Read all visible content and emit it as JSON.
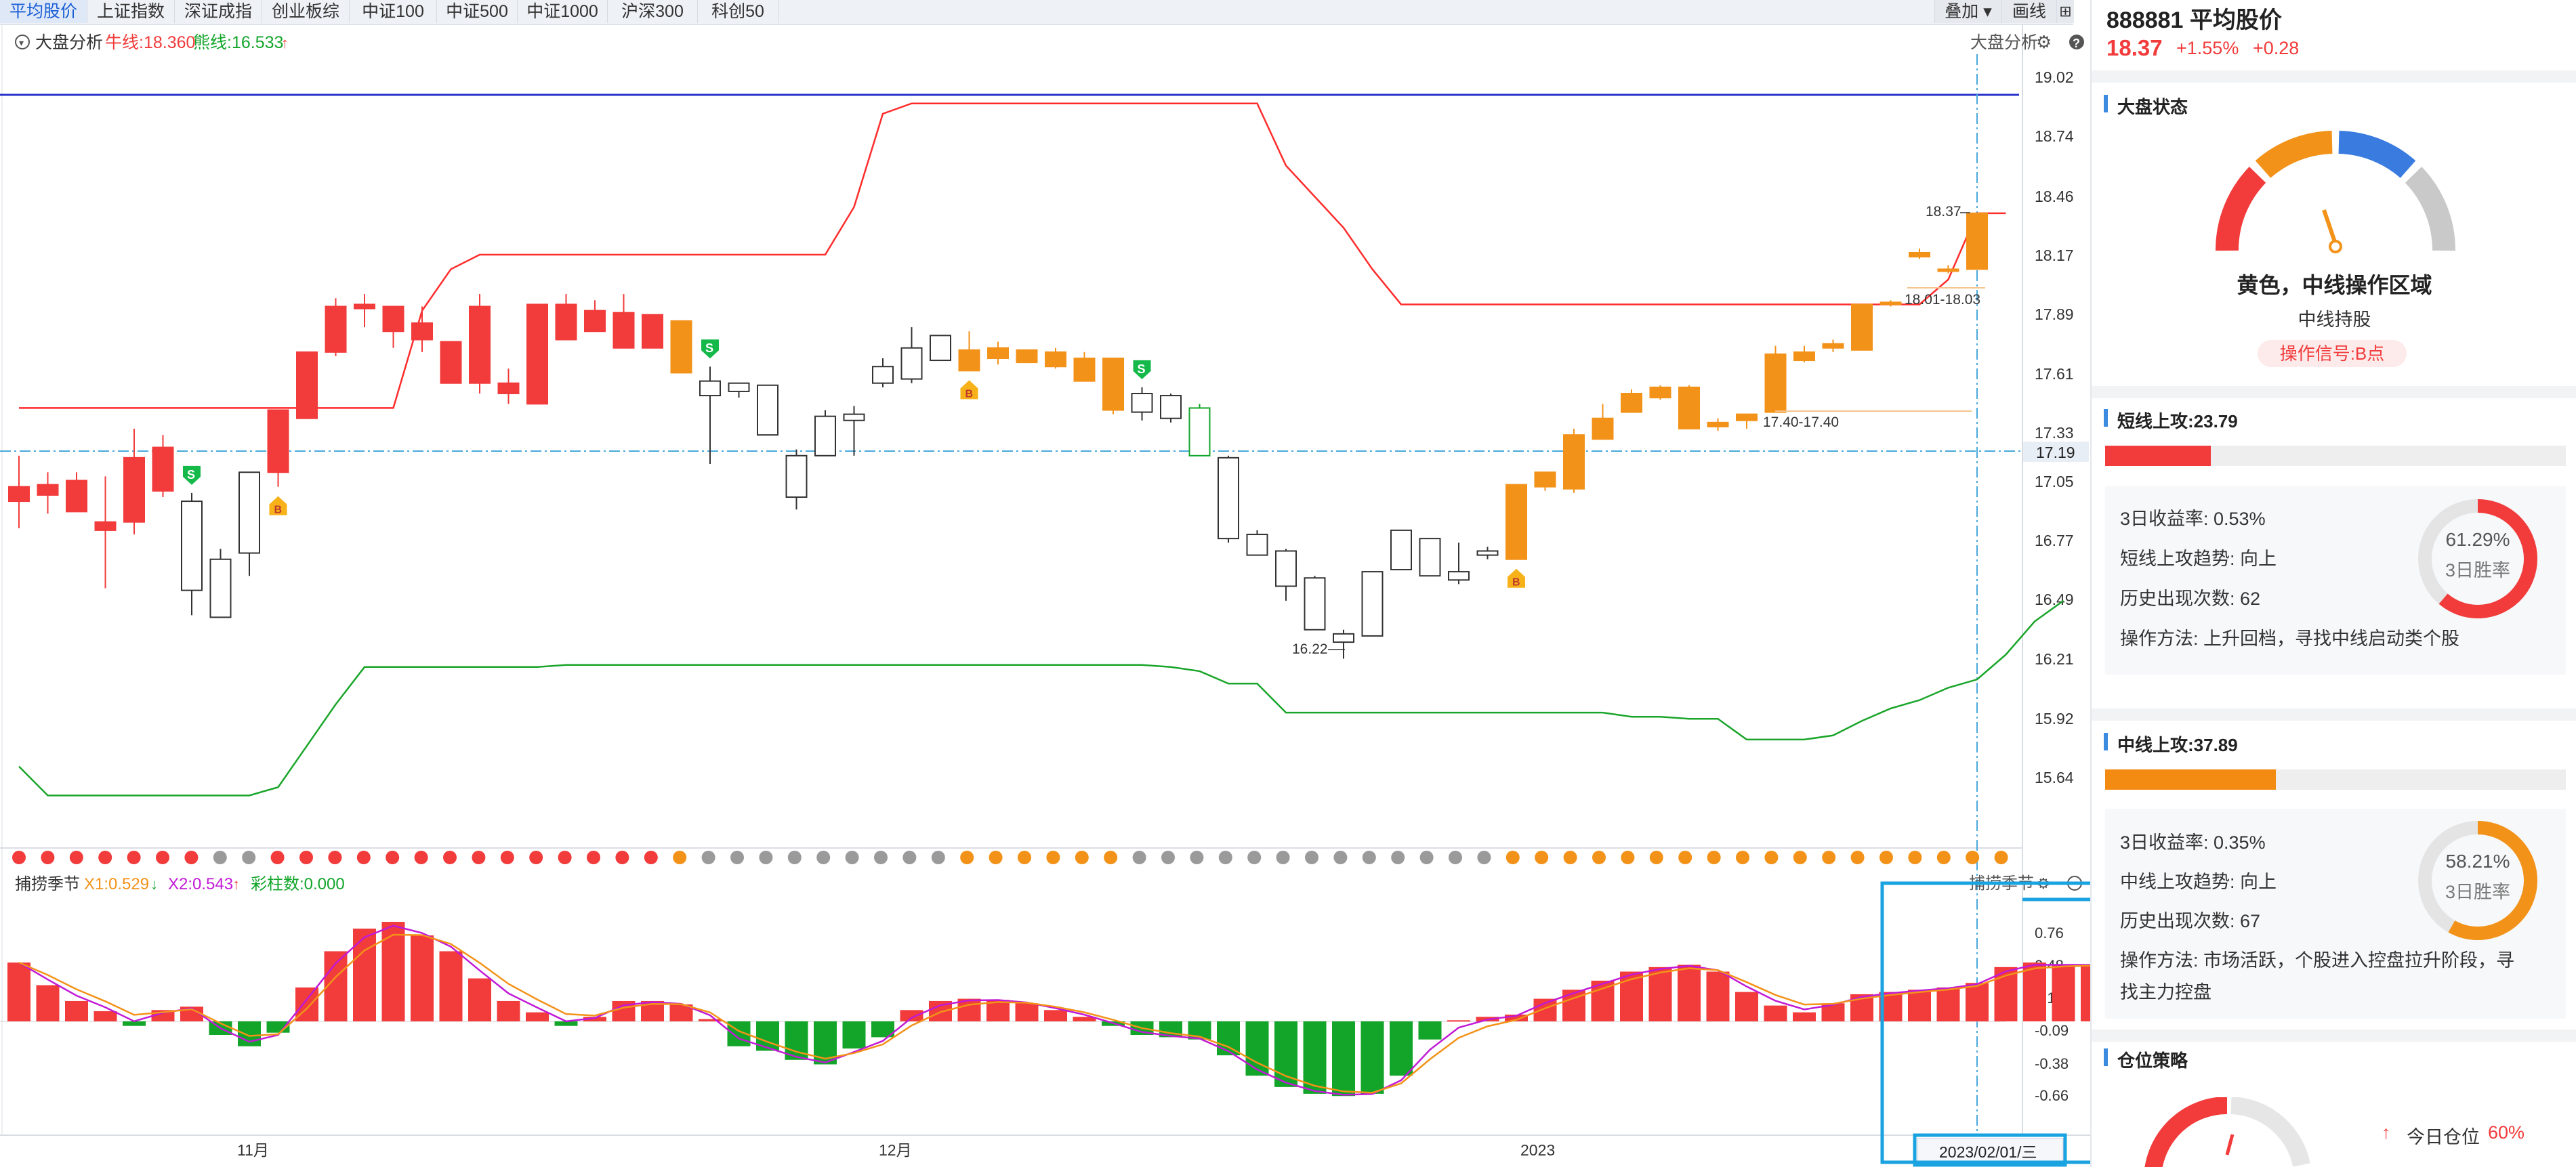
{
  "tabs": [
    "平均股价",
    "上证指数",
    "深证成指",
    "创业板综",
    "中证100",
    "中证500",
    "中证1000",
    "沪深300",
    "科创50"
  ],
  "toolbar": {
    "overlay_label": "叠加",
    "draw_label": "画线"
  },
  "main_legend": {
    "title": "大盘分析",
    "bull_label": "牛线:18.360",
    "bear_label": "熊线:16.533",
    "right_title": "大盘分析"
  },
  "price_axis": [
    "19.02",
    "18.74",
    "18.46",
    "18.17",
    "17.89",
    "17.61",
    "17.33",
    "17.05",
    "16.77",
    "16.49",
    "16.21",
    "15.92",
    "15.64"
  ],
  "cursor_price": "17.19",
  "annotations": {
    "high": "18.37",
    "range_top": "18.01-18.03",
    "range_mid": "17.40-17.40",
    "low": "16.22"
  },
  "sub_legend": {
    "title": "捕捞季节",
    "x1": "X1:0.529",
    "x2": "X2:0.543",
    "bar_count": "彩柱数:0.000",
    "right_title": "捕捞季节"
  },
  "sub_axis": [
    "0.76",
    "0.48",
    "0.19",
    "-0.09",
    "-0.38",
    "-0.66"
  ],
  "x_axis": [
    "11月",
    "12月",
    "2023"
  ],
  "cursor_date": "2023/02/01/三",
  "markers": {
    "buy": "B",
    "sell": "S"
  },
  "chart_data": {
    "type": "candlestick",
    "ylim": [
      15.5,
      19.1
    ],
    "candles": [
      {
        "o": 17.05,
        "h": 17.2,
        "l": 16.85,
        "c": 16.98,
        "col": "red"
      },
      {
        "o": 17.01,
        "h": 17.12,
        "l": 16.92,
        "c": 17.06,
        "col": "red"
      },
      {
        "o": 16.93,
        "h": 17.12,
        "l": 16.93,
        "c": 17.08,
        "col": "red"
      },
      {
        "o": 16.84,
        "h": 17.1,
        "l": 16.56,
        "c": 16.88,
        "col": "red"
      },
      {
        "o": 16.88,
        "h": 17.33,
        "l": 16.82,
        "c": 17.19,
        "col": "red"
      },
      {
        "o": 17.03,
        "h": 17.3,
        "l": 17.0,
        "c": 17.24,
        "col": "red"
      },
      {
        "o": 16.55,
        "h": 17.02,
        "l": 16.43,
        "c": 16.98,
        "col": "hollow"
      },
      {
        "o": 16.42,
        "h": 16.75,
        "l": 16.42,
        "c": 16.7,
        "col": "hollow"
      },
      {
        "o": 16.73,
        "h": 17.12,
        "l": 16.62,
        "c": 17.12,
        "col": "hollow"
      },
      {
        "o": 17.12,
        "h": 17.42,
        "l": 17.05,
        "c": 17.42,
        "col": "red"
      },
      {
        "o": 17.38,
        "h": 17.7,
        "l": 17.38,
        "c": 17.7,
        "col": "red"
      },
      {
        "o": 17.7,
        "h": 17.96,
        "l": 17.68,
        "c": 17.92,
        "col": "red"
      },
      {
        "o": 17.91,
        "h": 17.98,
        "l": 17.82,
        "c": 17.93,
        "col": "red"
      },
      {
        "o": 17.8,
        "h": 17.92,
        "l": 17.72,
        "c": 17.92,
        "col": "red"
      },
      {
        "o": 17.76,
        "h": 17.92,
        "l": 17.7,
        "c": 17.84,
        "col": "red"
      },
      {
        "o": 17.55,
        "h": 17.75,
        "l": 17.55,
        "c": 17.75,
        "col": "red"
      },
      {
        "o": 17.55,
        "h": 17.98,
        "l": 17.5,
        "c": 17.92,
        "col": "red"
      },
      {
        "o": 17.5,
        "h": 17.62,
        "l": 17.45,
        "c": 17.55,
        "col": "red"
      },
      {
        "o": 17.45,
        "h": 17.93,
        "l": 17.45,
        "c": 17.93,
        "col": "red"
      },
      {
        "o": 17.76,
        "h": 17.98,
        "l": 17.76,
        "c": 17.93,
        "col": "red"
      },
      {
        "o": 17.8,
        "h": 17.95,
        "l": 17.8,
        "c": 17.9,
        "col": "red"
      },
      {
        "o": 17.72,
        "h": 17.98,
        "l": 17.72,
        "c": 17.89,
        "col": "red"
      },
      {
        "o": 17.72,
        "h": 17.88,
        "l": 17.72,
        "c": 17.88,
        "col": "red"
      },
      {
        "o": 17.85,
        "h": 17.85,
        "l": 17.6,
        "c": 17.6,
        "col": "orange"
      },
      {
        "o": 17.56,
        "h": 17.63,
        "l": 17.16,
        "c": 17.49,
        "col": "hollow"
      },
      {
        "o": 17.51,
        "h": 17.55,
        "l": 17.48,
        "c": 17.55,
        "col": "hollow"
      },
      {
        "o": 17.3,
        "h": 17.54,
        "l": 17.3,
        "c": 17.54,
        "col": "hollow"
      },
      {
        "o": 17.0,
        "h": 17.23,
        "l": 16.94,
        "c": 17.2,
        "col": "hollow"
      },
      {
        "o": 17.2,
        "h": 17.42,
        "l": 17.2,
        "c": 17.39,
        "col": "hollow"
      },
      {
        "o": 17.37,
        "h": 17.44,
        "l": 17.2,
        "c": 17.4,
        "col": "hollow"
      },
      {
        "o": 17.55,
        "h": 17.67,
        "l": 17.53,
        "c": 17.63,
        "col": "hollow"
      },
      {
        "o": 17.57,
        "h": 17.82,
        "l": 17.55,
        "c": 17.72,
        "col": "hollow"
      },
      {
        "o": 17.66,
        "h": 17.78,
        "l": 17.66,
        "c": 17.78,
        "col": "hollow"
      },
      {
        "o": 17.71,
        "h": 17.8,
        "l": 17.61,
        "c": 17.61,
        "col": "orange"
      },
      {
        "o": 17.72,
        "h": 17.75,
        "l": 17.64,
        "c": 17.67,
        "col": "orange"
      },
      {
        "o": 17.71,
        "h": 17.71,
        "l": 17.65,
        "c": 17.65,
        "col": "orange"
      },
      {
        "o": 17.7,
        "h": 17.72,
        "l": 17.62,
        "c": 17.63,
        "col": "orange"
      },
      {
        "o": 17.67,
        "h": 17.7,
        "l": 17.56,
        "c": 17.56,
        "col": "orange"
      },
      {
        "o": 17.67,
        "h": 17.67,
        "l": 17.4,
        "c": 17.42,
        "col": "orange"
      },
      {
        "o": 17.41,
        "h": 17.53,
        "l": 17.37,
        "c": 17.5,
        "col": "hollow"
      },
      {
        "o": 17.38,
        "h": 17.5,
        "l": 17.36,
        "c": 17.49,
        "col": "hollow"
      },
      {
        "o": 17.2,
        "h": 17.45,
        "l": 17.2,
        "c": 17.43,
        "col": "hollow",
        "green": true
      },
      {
        "o": 16.8,
        "h": 17.2,
        "l": 16.78,
        "c": 17.19,
        "col": "hollow"
      },
      {
        "o": 16.72,
        "h": 16.84,
        "l": 16.72,
        "c": 16.82,
        "col": "hollow"
      },
      {
        "o": 16.57,
        "h": 16.75,
        "l": 16.5,
        "c": 16.74,
        "col": "hollow"
      },
      {
        "o": 16.36,
        "h": 16.62,
        "l": 16.36,
        "c": 16.61,
        "col": "hollow"
      },
      {
        "o": 16.3,
        "h": 16.36,
        "l": 16.22,
        "c": 16.34,
        "col": "hollow"
      },
      {
        "o": 16.33,
        "h": 16.64,
        "l": 16.33,
        "c": 16.64,
        "col": "hollow"
      },
      {
        "o": 16.65,
        "h": 16.84,
        "l": 16.65,
        "c": 16.84,
        "col": "hollow"
      },
      {
        "o": 16.62,
        "h": 16.8,
        "l": 16.62,
        "c": 16.8,
        "col": "hollow"
      },
      {
        "o": 16.6,
        "h": 16.78,
        "l": 16.58,
        "c": 16.64,
        "col": "hollow"
      },
      {
        "o": 16.72,
        "h": 16.76,
        "l": 16.7,
        "c": 16.74,
        "col": "hollow"
      },
      {
        "o": 16.7,
        "h": 17.06,
        "l": 16.7,
        "c": 17.06,
        "col": "orange"
      },
      {
        "o": 17.05,
        "h": 17.12,
        "l": 17.03,
        "c": 17.12,
        "col": "orange"
      },
      {
        "o": 17.04,
        "h": 17.33,
        "l": 17.02,
        "c": 17.3,
        "col": "orange"
      },
      {
        "o": 17.28,
        "h": 17.45,
        "l": 17.28,
        "c": 17.38,
        "col": "orange"
      },
      {
        "o": 17.41,
        "h": 17.52,
        "l": 17.41,
        "c": 17.5,
        "col": "orange"
      },
      {
        "o": 17.48,
        "h": 17.54,
        "l": 17.47,
        "c": 17.53,
        "col": "orange"
      },
      {
        "o": 17.33,
        "h": 17.54,
        "l": 17.33,
        "c": 17.53,
        "col": "orange"
      },
      {
        "o": 17.34,
        "h": 17.38,
        "l": 17.32,
        "c": 17.36,
        "col": "orange"
      },
      {
        "o": 17.37,
        "h": 17.4,
        "l": 17.33,
        "c": 17.4,
        "col": "orange"
      },
      {
        "o": 17.41,
        "h": 17.73,
        "l": 17.41,
        "c": 17.69,
        "col": "orange"
      },
      {
        "o": 17.66,
        "h": 17.73,
        "l": 17.65,
        "c": 17.7,
        "col": "orange"
      },
      {
        "o": 17.72,
        "h": 17.76,
        "l": 17.7,
        "c": 17.74,
        "col": "orange"
      },
      {
        "o": 17.71,
        "h": 17.93,
        "l": 17.71,
        "c": 17.93,
        "col": "orange"
      },
      {
        "o": 17.93,
        "h": 17.95,
        "l": 17.92,
        "c": 17.94,
        "col": "orange"
      },
      {
        "o": 18.16,
        "h": 18.2,
        "l": 18.15,
        "c": 18.18,
        "col": "orange"
      },
      {
        "o": 18.09,
        "h": 18.12,
        "l": 18.08,
        "c": 18.1,
        "col": "orange"
      },
      {
        "o": 18.1,
        "h": 18.37,
        "l": 18.1,
        "c": 18.37,
        "col": "orange"
      }
    ],
    "bull_line": [
      17.43,
      17.43,
      17.43,
      17.43,
      17.43,
      17.43,
      17.43,
      17.43,
      17.43,
      17.43,
      17.43,
      17.43,
      17.43,
      17.43,
      17.9,
      18.1,
      18.17,
      18.17,
      18.17,
      18.17,
      18.17,
      18.17,
      18.17,
      18.17,
      18.17,
      18.17,
      18.17,
      18.17,
      18.17,
      18.4,
      18.85,
      18.9,
      18.9,
      18.9,
      18.9,
      18.9,
      18.9,
      18.9,
      18.9,
      18.9,
      18.9,
      18.9,
      18.9,
      18.9,
      18.6,
      18.45,
      18.3,
      18.1,
      17.93,
      17.93,
      17.93,
      17.93,
      17.93,
      17.93,
      17.93,
      17.93,
      17.93,
      17.93,
      17.93,
      17.93,
      17.93,
      17.93,
      17.93,
      17.93,
      17.93,
      17.93,
      17.93,
      18.05,
      18.37,
      18.37
    ],
    "bear_line": [
      15.7,
      15.56,
      15.56,
      15.56,
      15.56,
      15.56,
      15.56,
      15.56,
      15.56,
      15.6,
      15.8,
      16.0,
      16.18,
      16.18,
      16.18,
      16.18,
      16.18,
      16.18,
      16.18,
      16.19,
      16.19,
      16.19,
      16.19,
      16.19,
      16.19,
      16.19,
      16.19,
      16.19,
      16.19,
      16.19,
      16.19,
      16.19,
      16.19,
      16.19,
      16.19,
      16.19,
      16.19,
      16.19,
      16.19,
      16.19,
      16.18,
      16.16,
      16.1,
      16.1,
      15.96,
      15.96,
      15.96,
      15.96,
      15.96,
      15.96,
      15.96,
      15.96,
      15.96,
      15.96,
      15.96,
      15.96,
      15.94,
      15.94,
      15.93,
      15.93,
      15.83,
      15.83,
      15.83,
      15.85,
      15.92,
      15.98,
      16.02,
      16.08,
      16.12,
      16.24,
      16.4,
      16.5
    ],
    "dots": [
      "red",
      "red",
      "red",
      "red",
      "red",
      "red",
      "red",
      "grey",
      "grey",
      "red",
      "red",
      "red",
      "red",
      "red",
      "red",
      "red",
      "red",
      "red",
      "red",
      "red",
      "red",
      "red",
      "red",
      "orange",
      "grey",
      "grey",
      "grey",
      "grey",
      "grey",
      "grey",
      "grey",
      "grey",
      "grey",
      "orange",
      "orange",
      "orange",
      "orange",
      "orange",
      "orange",
      "grey",
      "grey",
      "grey",
      "grey",
      "grey",
      "grey",
      "grey",
      "grey",
      "grey",
      "grey",
      "grey",
      "grey",
      "grey",
      "orange",
      "orange",
      "orange",
      "orange",
      "orange",
      "orange",
      "orange",
      "orange",
      "orange",
      "orange",
      "orange",
      "orange",
      "orange",
      "orange",
      "orange",
      "orange",
      "orange",
      "orange"
    ],
    "signals": [
      {
        "i": 6,
        "type": "sell"
      },
      {
        "i": 9,
        "type": "buy"
      },
      {
        "i": 24,
        "type": "sell"
      },
      {
        "i": 33,
        "type": "buy"
      },
      {
        "i": 39,
        "type": "sell"
      },
      {
        "i": 52,
        "type": "buy"
      }
    ],
    "osc_ylim": [
      -0.8,
      0.95
    ],
    "osc": [
      0.52,
      0.32,
      0.18,
      0.09,
      -0.04,
      0.1,
      0.13,
      -0.12,
      -0.22,
      -0.1,
      0.3,
      0.62,
      0.82,
      0.88,
      0.76,
      0.62,
      0.38,
      0.18,
      0.08,
      -0.04,
      0.04,
      0.18,
      0.18,
      0.15,
      0.02,
      -0.22,
      -0.26,
      -0.34,
      -0.38,
      -0.24,
      -0.14,
      0.1,
      0.18,
      0.2,
      0.19,
      0.16,
      0.1,
      0.04,
      -0.04,
      -0.12,
      -0.14,
      -0.16,
      -0.3,
      -0.48,
      -0.58,
      -0.64,
      -0.66,
      -0.64,
      -0.48,
      -0.16,
      0.01,
      0.04,
      0.06,
      0.2,
      0.28,
      0.36,
      0.44,
      0.48,
      0.5,
      0.44,
      0.26,
      0.14,
      0.08,
      0.16,
      0.24,
      0.26,
      0.28,
      0.3,
      0.34,
      0.48,
      0.52,
      0.5,
      0.5
    ]
  },
  "right_panel": {
    "code_name": "888881 平均股价",
    "price": "18.37",
    "pct": "+1.55%",
    "chg": "+0.28",
    "market_state_title": "大盘状态",
    "gauge_status": "黄色，中线操作区域",
    "gauge_sub": "中线持股",
    "signal_badge": "操作信号:B点",
    "short": {
      "title": "短线上攻:23.79",
      "level": 0.23,
      "r1": "3日收益率:  0.53%",
      "r2": "短线上攻趋势:  向上",
      "r3": "历史出现次数:  62",
      "r4": "操作方法:  上升回档，寻找中线启动类个股",
      "ring_pct": "61.29%",
      "ring_label": "3日胜率",
      "ring_value": 0.6129
    },
    "mid": {
      "title": "中线上攻:37.89",
      "level": 0.37,
      "r1": "3日收益率:  0.35%",
      "r2": "中线上攻趋势:  向上",
      "r3": "历史出现次数:  67",
      "r4a": "操作方法:  市场活跃，个股进入控盘拉升阶段，寻",
      "r4b": "找主力控盘",
      "ring_pct": "58.21%",
      "ring_label": "3日胜率",
      "ring_value": 0.5821
    },
    "position_title": "仓位策略",
    "today_label": "今日仓位",
    "today_value": "60%"
  },
  "colors": {
    "red": "#f23b3b",
    "orange": "#f39219",
    "green": "#13a52a",
    "hollow": "#333333",
    "blue": "#3a8be0",
    "bull": "#ff2c2c",
    "bear": "#1aa52a",
    "topline": "#2a35c9",
    "highlight": "#1aa3e0"
  }
}
